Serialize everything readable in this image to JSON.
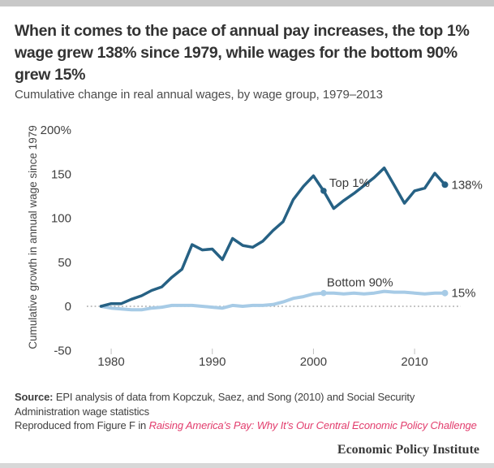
{
  "page": {
    "title": "When it comes to the pace of annual pay increases, the top 1% wage grew 138% since 1979, while wages for the bottom 90% grew 15%",
    "subtitle": "Cumulative change in real annual wages, by wage group, 1979–2013"
  },
  "footer": {
    "source_label": "Source:",
    "source_text": " EPI analysis of data from Kopczuk, Saez, and Song (2010) and Social Security Administration wage statistics",
    "reproduced_prefix": "Reproduced from Figure F in ",
    "reproduced_link": "Raising America’s Pay: Why It’s Our Central Economic Policy Challenge",
    "brand": "Economic Policy Institute"
  },
  "colors": {
    "top_bar": "#c8c8c8",
    "bottom_bar": "#d8d8d8",
    "link_pink": "#e23d6d",
    "title_text": "#333333",
    "top1_line": "#266184",
    "bottom90_line": "#a7cbe6",
    "zero_line": "#999999",
    "tick_mark": "#c0c0c0"
  },
  "chart_data": {
    "type": "line",
    "title": "",
    "xlabel": "",
    "ylabel": "Cumulative growth in annual wage since 1979",
    "xlim": [
      1979,
      2013
    ],
    "ylim": [
      -50,
      200
    ],
    "grid": false,
    "legend_position": "inline-labels",
    "zero_line": 0,
    "x": [
      1979,
      1980,
      1981,
      1982,
      1983,
      1984,
      1985,
      1986,
      1987,
      1988,
      1989,
      1990,
      1991,
      1992,
      1993,
      1994,
      1995,
      1996,
      1997,
      1998,
      1999,
      2000,
      2001,
      2002,
      2003,
      2004,
      2005,
      2006,
      2007,
      2008,
      2009,
      2010,
      2011,
      2012,
      2013
    ],
    "series": [
      {
        "name": "Top 1%",
        "color": "#266184",
        "end_label": "138%",
        "marker_year": 2001,
        "values": [
          0,
          3,
          3,
          8,
          12,
          18,
          22,
          33,
          42,
          70,
          64,
          65,
          53,
          77,
          69,
          67,
          74,
          86,
          96,
          121,
          136,
          148,
          131,
          111,
          120,
          128,
          137,
          146,
          157,
          137,
          117,
          131,
          134,
          151,
          138
        ]
      },
      {
        "name": "Bottom 90%",
        "color": "#a7cbe6",
        "end_label": "15%",
        "marker_year": 2001,
        "values": [
          0,
          -2,
          -3,
          -4,
          -4,
          -2,
          -1,
          1,
          1,
          1,
          0,
          -1,
          -2,
          1,
          0,
          1,
          1,
          2,
          5,
          9,
          11,
          14,
          15,
          15,
          14,
          15,
          14,
          15,
          17,
          16,
          16,
          15,
          14,
          15,
          15
        ]
      }
    ],
    "yticks": {
      "values": [
        200,
        150,
        100,
        50,
        0,
        -50
      ],
      "labels": [
        "200%",
        "150",
        "100",
        "50",
        "0",
        "-50"
      ]
    },
    "xticks": {
      "values": [
        1980,
        1990,
        2000,
        2010
      ],
      "labels": [
        "1980",
        "1990",
        "2000",
        "2010"
      ]
    }
  }
}
